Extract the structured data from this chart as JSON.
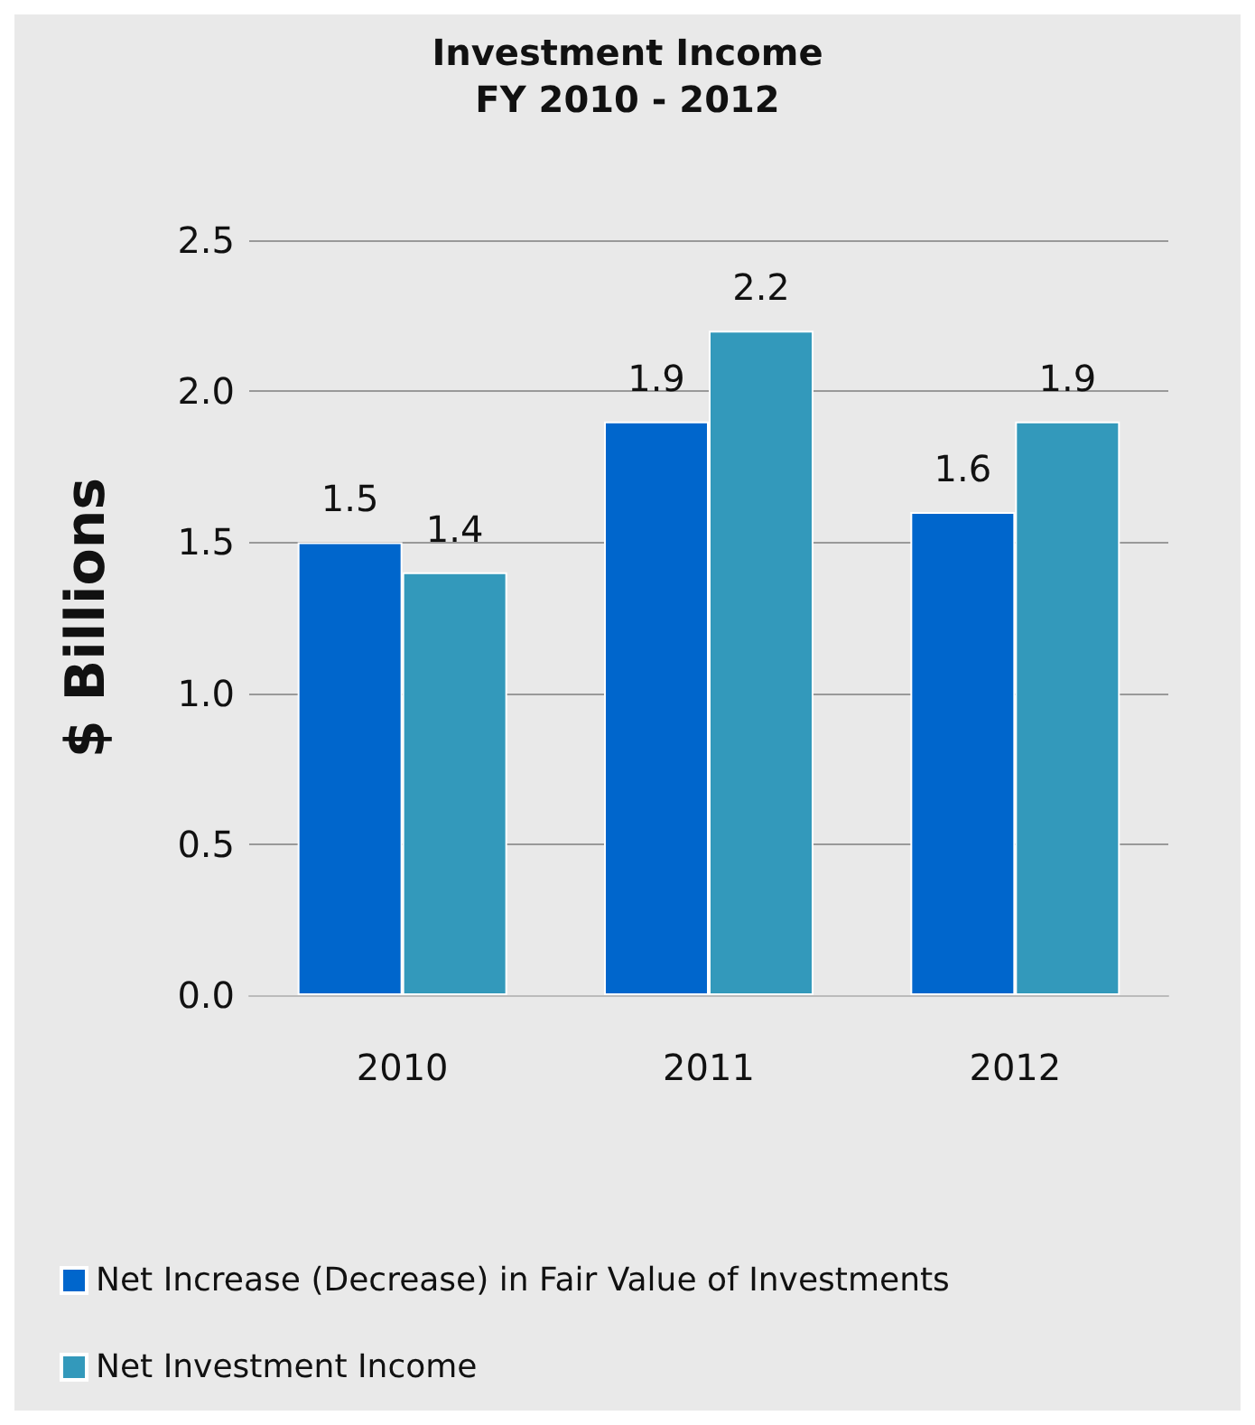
{
  "chart_data": {
    "type": "bar",
    "title": "Investment Income",
    "subtitle": "FY 2010 - 2012",
    "ylabel": "$ Billions",
    "categories": [
      "2010",
      "2011",
      "2012"
    ],
    "series": [
      {
        "name": "Net Increase (Decrease) in Fair Value of Investments",
        "color": "#0066cc",
        "values": [
          1.5,
          1.9,
          1.6
        ]
      },
      {
        "name": "Net Investment Income",
        "color": "#3399bb",
        "values": [
          1.4,
          2.2,
          1.9
        ]
      }
    ],
    "ylim": [
      0,
      2.5
    ],
    "yticks": [
      {
        "value": 0,
        "label": "0.0"
      },
      {
        "value": 0.5,
        "label": "0.5"
      },
      {
        "value": 1,
        "label": "1.0"
      },
      {
        "value": 1.5,
        "label": "1.5"
      },
      {
        "value": 2,
        "label": "2.0"
      },
      {
        "value": 2.5,
        "label": "2.5"
      }
    ],
    "grid": "y",
    "legend": "bottom",
    "data_labels": true
  }
}
